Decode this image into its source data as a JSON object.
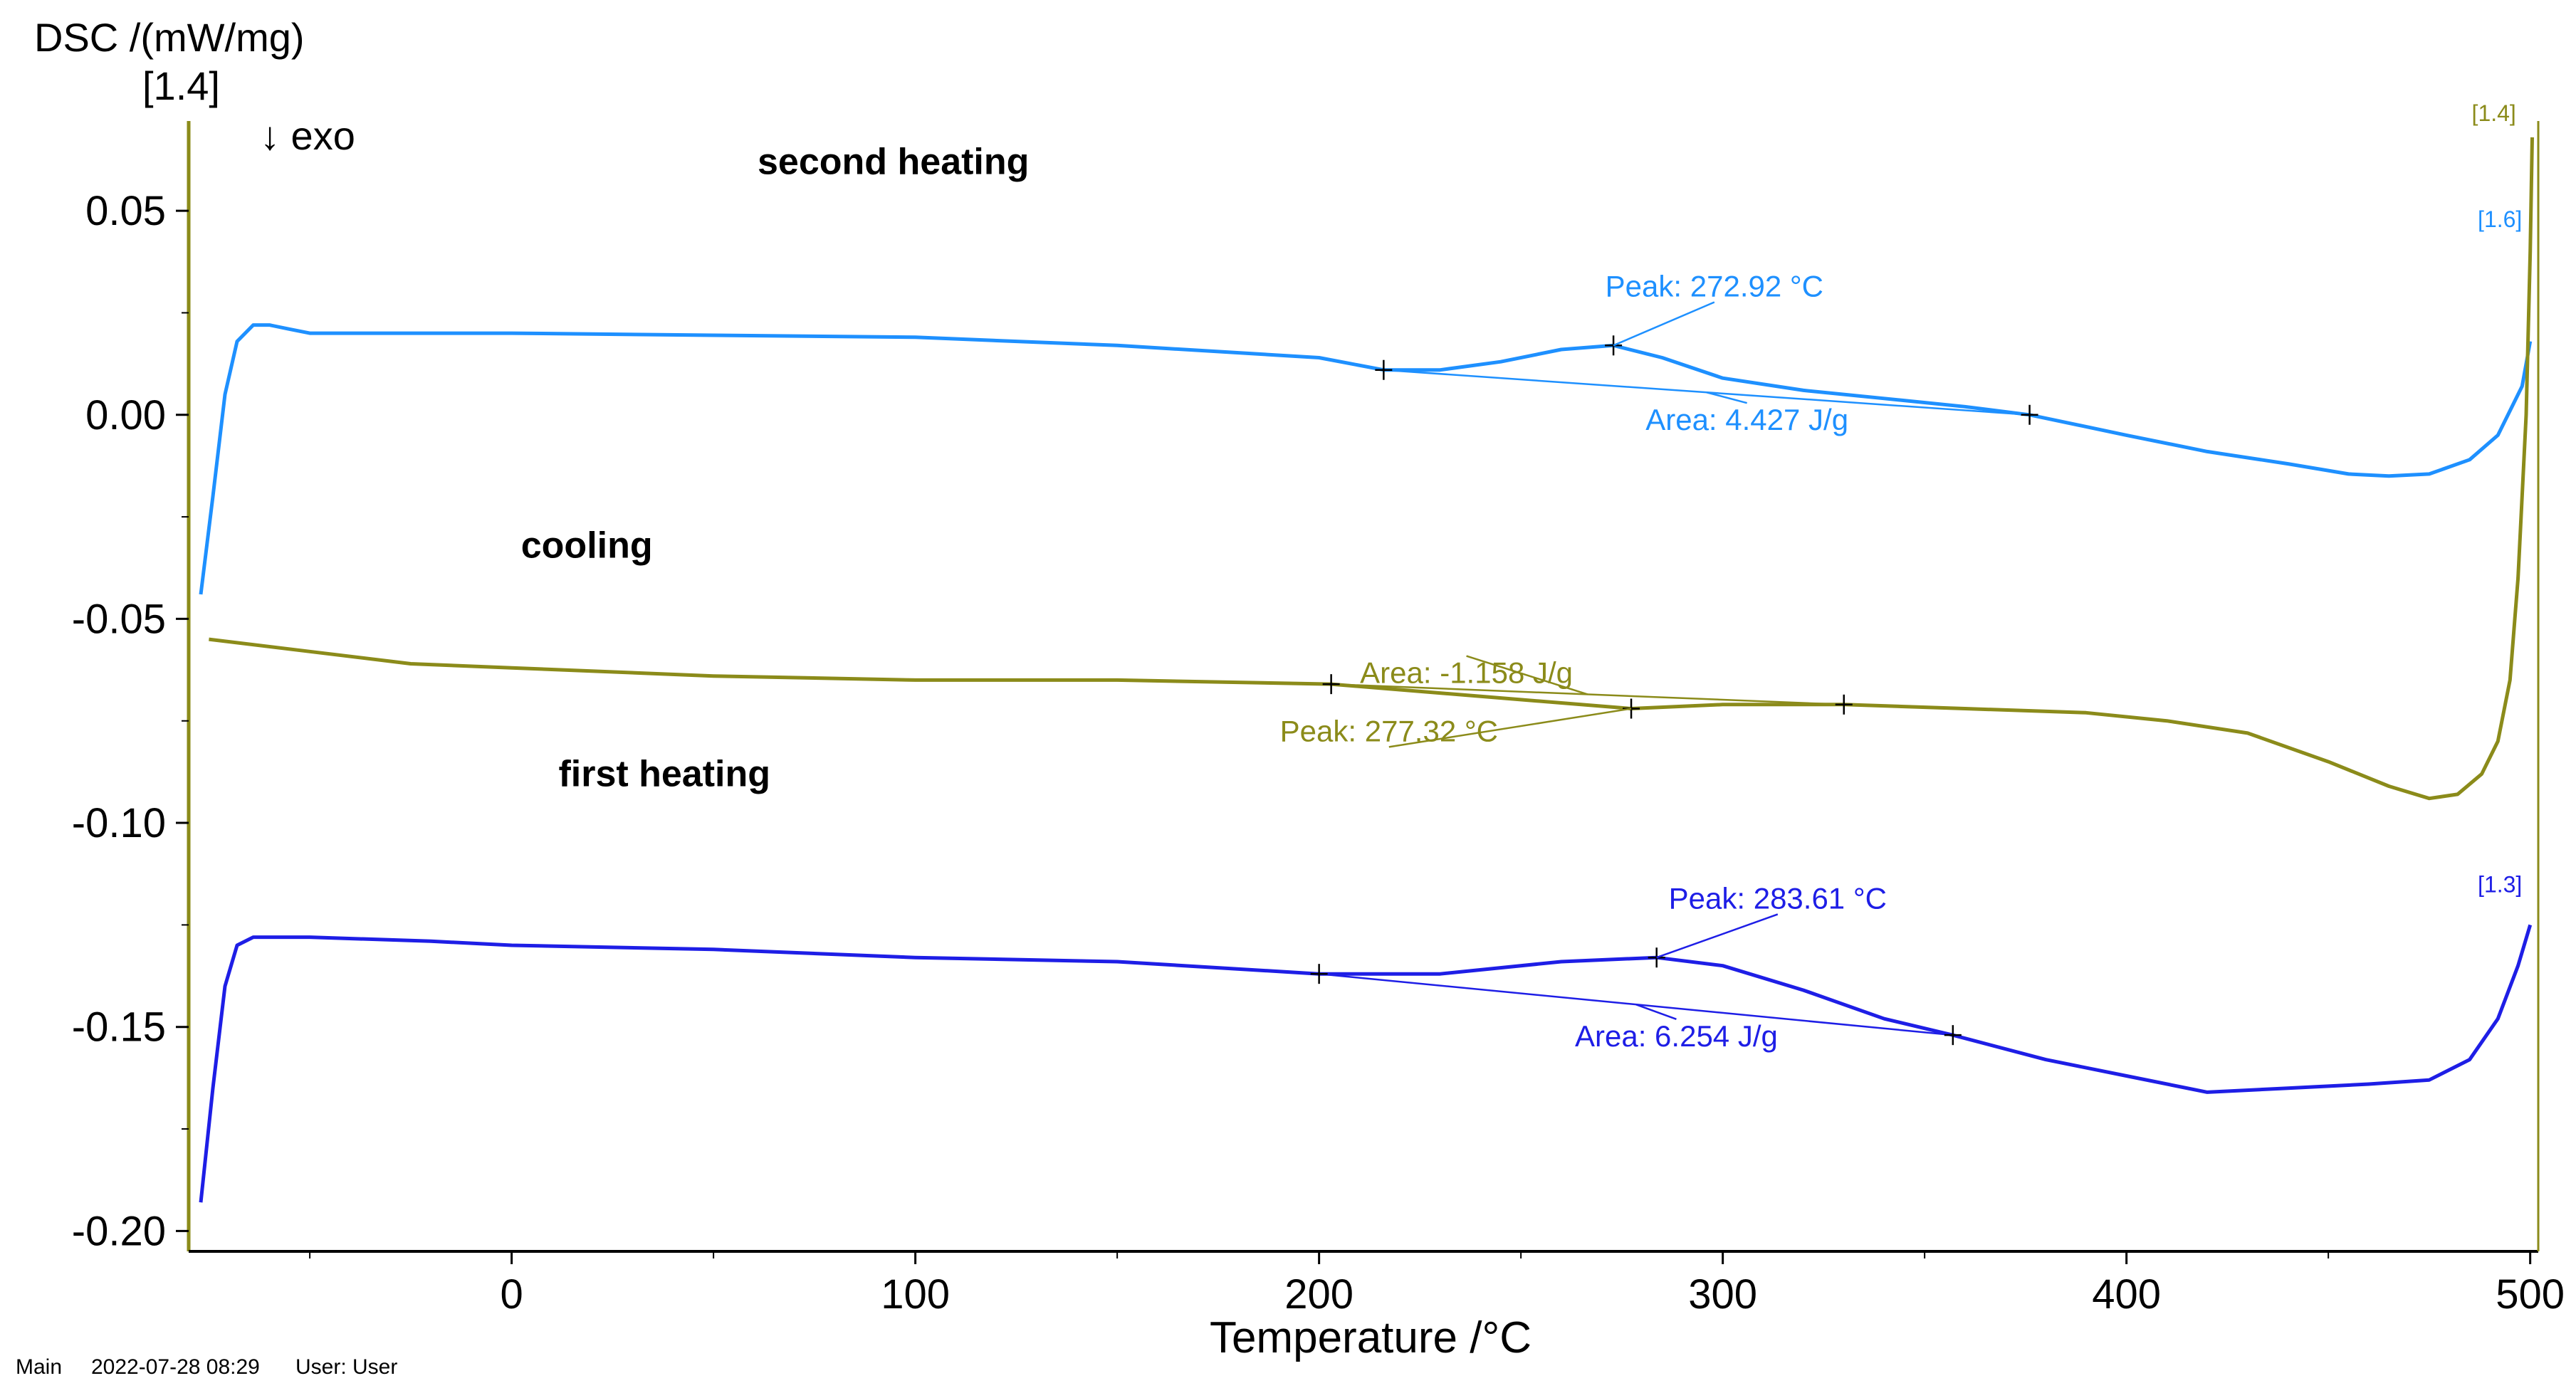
{
  "colors": {
    "second_heating": "#1E90FF",
    "cooling": "#8B8B1A",
    "first_heating": "#1E1EE6",
    "axis": "#000000",
    "axis_left": "#8B8B1A"
  },
  "footer": {
    "main": "Main",
    "datetime": "2022-07-28 08:29",
    "user": "User: User"
  },
  "chart_data": {
    "type": "line",
    "title": "",
    "xlabel": "Temperature /°C",
    "ylabel": "DSC /(mW/mg)",
    "ylabel_index": "[1.4]",
    "exo_label": "↓ exo",
    "xlim": [
      -80,
      502
    ],
    "ylim": [
      -0.205,
      0.072
    ],
    "xticks": [
      0,
      100,
      200,
      300,
      400,
      500
    ],
    "xtick_labels": [
      "0",
      "100",
      "200",
      "300",
      "400",
      "500"
    ],
    "yticks": [
      0.05,
      0.0,
      -0.05,
      -0.1,
      -0.15,
      -0.2
    ],
    "ytick_labels": [
      "0.05",
      "0.00",
      "-0.05",
      "-0.10",
      "-0.15",
      "-0.20"
    ],
    "series": [
      {
        "name": "second heating",
        "label": "second heating",
        "color_key": "second_heating",
        "end_tag": "[1.6]",
        "x": [
          -77,
          -74,
          -71,
          -68,
          -64,
          -60,
          -55,
          -50,
          -40,
          -20,
          0,
          50,
          100,
          150,
          200,
          216,
          230,
          245,
          260,
          272.92,
          285,
          300,
          320,
          340,
          360,
          376,
          400,
          420,
          440,
          455,
          465,
          475,
          485,
          492,
          498,
          500
        ],
        "y": [
          -0.044,
          -0.02,
          0.005,
          0.018,
          0.022,
          0.022,
          0.021,
          0.02,
          0.02,
          0.02,
          0.02,
          0.0195,
          0.019,
          0.017,
          0.014,
          0.011,
          0.011,
          0.013,
          0.016,
          0.017,
          0.014,
          0.009,
          0.006,
          0.004,
          0.002,
          0.0,
          -0.005,
          -0.009,
          -0.012,
          -0.0145,
          -0.015,
          -0.0145,
          -0.011,
          -0.005,
          0.007,
          0.018
        ],
        "peak": {
          "x": 272.92,
          "y": 0.017,
          "label": "Peak: 272.92 °C"
        },
        "area": {
          "x_start": 216,
          "y_start": 0.011,
          "x_end": 376,
          "y_end": 0.0,
          "label": "Area: 4.427 J/g"
        }
      },
      {
        "name": "cooling",
        "label": "cooling",
        "color_key": "cooling",
        "end_tag": "[1.4]",
        "x": [
          -75,
          -50,
          -25,
          0,
          50,
          100,
          150,
          203,
          240,
          277.32,
          300,
          330,
          360,
          390,
          410,
          430,
          450,
          465,
          475,
          482,
          488,
          492,
          495,
          497,
          499,
          500,
          500.5
        ],
        "y": [
          -0.055,
          -0.058,
          -0.061,
          -0.062,
          -0.064,
          -0.065,
          -0.065,
          -0.066,
          -0.069,
          -0.072,
          -0.071,
          -0.071,
          -0.072,
          -0.073,
          -0.075,
          -0.078,
          -0.085,
          -0.091,
          -0.094,
          -0.093,
          -0.088,
          -0.08,
          -0.065,
          -0.04,
          0.0,
          0.04,
          0.068
        ],
        "peak": {
          "x": 277.32,
          "y": -0.072,
          "label": "Peak: 277.32 °C"
        },
        "area": {
          "x_start": 203,
          "y_start": -0.066,
          "x_end": 330,
          "y_end": -0.071,
          "label": "Area: -1.158 J/g"
        }
      },
      {
        "name": "first heating",
        "label": "first heating",
        "color_key": "first_heating",
        "end_tag": "[1.3]",
        "x": [
          -77,
          -74,
          -71,
          -68,
          -64,
          -60,
          -55,
          -50,
          -20,
          0,
          50,
          100,
          150,
          200,
          230,
          260,
          283.61,
          300,
          320,
          340,
          357,
          380,
          400,
          420,
          440,
          460,
          475,
          485,
          492,
          497,
          500
        ],
        "y": [
          -0.193,
          -0.165,
          -0.14,
          -0.13,
          -0.128,
          -0.128,
          -0.128,
          -0.128,
          -0.129,
          -0.13,
          -0.131,
          -0.133,
          -0.134,
          -0.137,
          -0.137,
          -0.134,
          -0.133,
          -0.135,
          -0.141,
          -0.148,
          -0.152,
          -0.158,
          -0.162,
          -0.166,
          -0.165,
          -0.164,
          -0.163,
          -0.158,
          -0.148,
          -0.135,
          -0.125
        ],
        "peak": {
          "x": 283.61,
          "y": -0.133,
          "label": "Peak: 283.61 °C"
        },
        "area": {
          "x_start": 200,
          "y_start": -0.137,
          "x_end": 357,
          "y_end": -0.152,
          "label": "Area: 6.254 J/g"
        }
      }
    ]
  }
}
